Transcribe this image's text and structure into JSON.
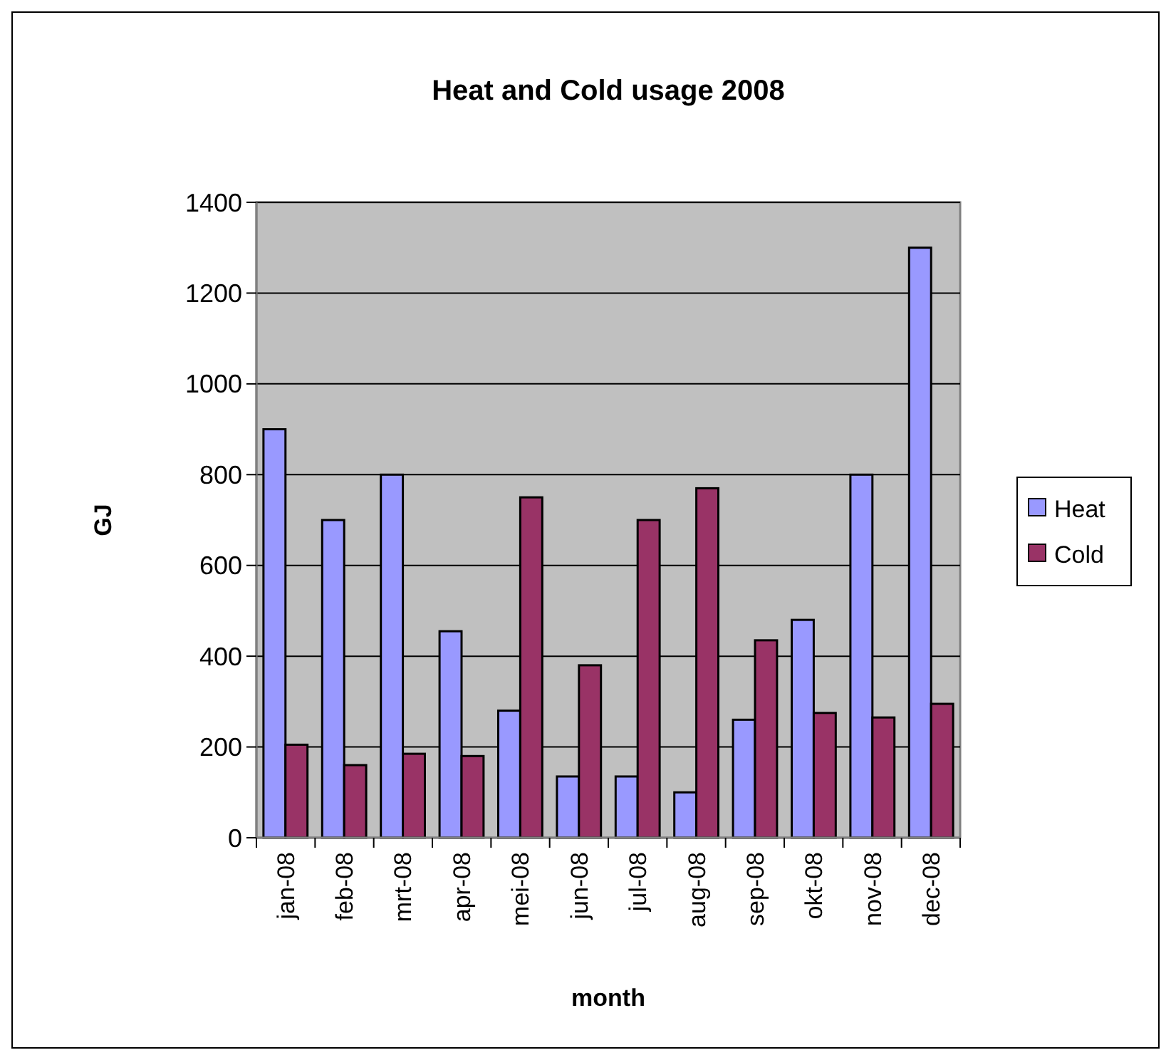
{
  "chart_data": {
    "type": "bar",
    "title": "Heat and Cold usage 2008",
    "xlabel": "month",
    "ylabel": "GJ",
    "categories": [
      "jan-08",
      "feb-08",
      "mrt-08",
      "apr-08",
      "mei-08",
      "jun-08",
      "jul-08",
      "aug-08",
      "sep-08",
      "okt-08",
      "nov-08",
      "dec-08"
    ],
    "series": [
      {
        "name": "Heat",
        "color": "#9999ff",
        "values": [
          900,
          700,
          800,
          455,
          280,
          135,
          135,
          100,
          260,
          480,
          800,
          1300
        ]
      },
      {
        "name": "Cold",
        "color": "#993366",
        "values": [
          205,
          160,
          185,
          180,
          750,
          380,
          700,
          770,
          435,
          275,
          265,
          295
        ]
      }
    ],
    "ylim": [
      0,
      1400
    ],
    "yticks": [
      0,
      200,
      400,
      600,
      800,
      1000,
      1200,
      1400
    ],
    "grid": "y",
    "legend": "right"
  }
}
